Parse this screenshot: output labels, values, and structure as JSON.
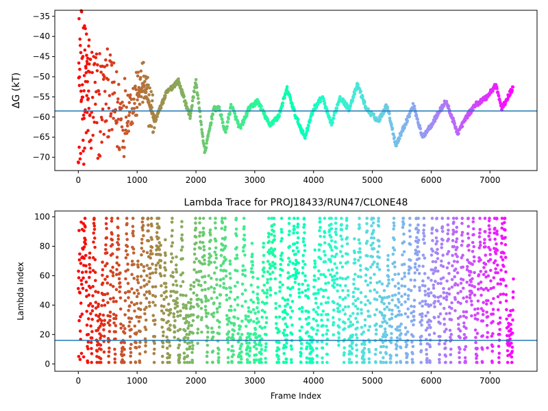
{
  "chart_data": [
    {
      "type": "scatter",
      "title": "",
      "xlabel": "",
      "ylabel": "ΔG (kT)",
      "xlim": [
        -400,
        7800
      ],
      "ylim": [
        -73.3,
        -33.5
      ],
      "xticks": [
        0,
        1000,
        2000,
        3000,
        4000,
        5000,
        6000,
        7000
      ],
      "yticks": [
        -70,
        -65,
        -60,
        -55,
        -50,
        -45,
        -40,
        -35
      ],
      "hline": -58.5,
      "colormap": "rainbow (reversed): red at frame 0 to violet at last frame",
      "trace_anchors": [
        {
          "x": 100,
          "y": -52
        },
        {
          "x": 300,
          "y": -58
        },
        {
          "x": 500,
          "y": -54
        },
        {
          "x": 700,
          "y": -60
        },
        {
          "x": 900,
          "y": -57
        },
        {
          "x": 1100,
          "y": -52
        },
        {
          "x": 1300,
          "y": -61
        },
        {
          "x": 1500,
          "y": -54
        },
        {
          "x": 1700,
          "y": -51
        },
        {
          "x": 1900,
          "y": -60
        },
        {
          "x": 2000,
          "y": -51
        },
        {
          "x": 2150,
          "y": -69
        },
        {
          "x": 2300,
          "y": -58
        },
        {
          "x": 2400,
          "y": -58
        },
        {
          "x": 2500,
          "y": -64
        },
        {
          "x": 2600,
          "y": -57
        },
        {
          "x": 2750,
          "y": -63
        },
        {
          "x": 2900,
          "y": -58
        },
        {
          "x": 3050,
          "y": -56
        },
        {
          "x": 3250,
          "y": -62
        },
        {
          "x": 3400,
          "y": -60
        },
        {
          "x": 3550,
          "y": -53
        },
        {
          "x": 3700,
          "y": -60
        },
        {
          "x": 3850,
          "y": -65
        },
        {
          "x": 4000,
          "y": -58
        },
        {
          "x": 4150,
          "y": -55
        },
        {
          "x": 4300,
          "y": -62
        },
        {
          "x": 4450,
          "y": -55
        },
        {
          "x": 4600,
          "y": -58
        },
        {
          "x": 4750,
          "y": -52
        },
        {
          "x": 4900,
          "y": -58
        },
        {
          "x": 5100,
          "y": -61
        },
        {
          "x": 5250,
          "y": -57
        },
        {
          "x": 5400,
          "y": -67
        },
        {
          "x": 5550,
          "y": -62
        },
        {
          "x": 5700,
          "y": -57
        },
        {
          "x": 5850,
          "y": -65
        },
        {
          "x": 6000,
          "y": -62
        },
        {
          "x": 6250,
          "y": -56
        },
        {
          "x": 6450,
          "y": -64
        },
        {
          "x": 6600,
          "y": -60
        },
        {
          "x": 6750,
          "y": -57
        },
        {
          "x": 6950,
          "y": -55
        },
        {
          "x": 7100,
          "y": -52
        },
        {
          "x": 7200,
          "y": -58
        },
        {
          "x": 7380,
          "y": -53
        }
      ]
    },
    {
      "type": "scatter",
      "title": "Lambda Trace for PROJ18433/RUN47/CLONE48",
      "xlabel": "Frame Index",
      "ylabel": "Lambda Index",
      "xlim": [
        -400,
        7800
      ],
      "ylim": [
        -5,
        104
      ],
      "xticks": [
        0,
        1000,
        2000,
        3000,
        4000,
        5000,
        6000,
        7000
      ],
      "yticks": [
        0,
        20,
        40,
        60,
        80,
        100
      ],
      "hline": 16,
      "colormap": "rainbow (reversed): red at frame 0 to violet at last frame",
      "frame_count": 7400,
      "value_range": [
        1,
        99
      ]
    }
  ]
}
